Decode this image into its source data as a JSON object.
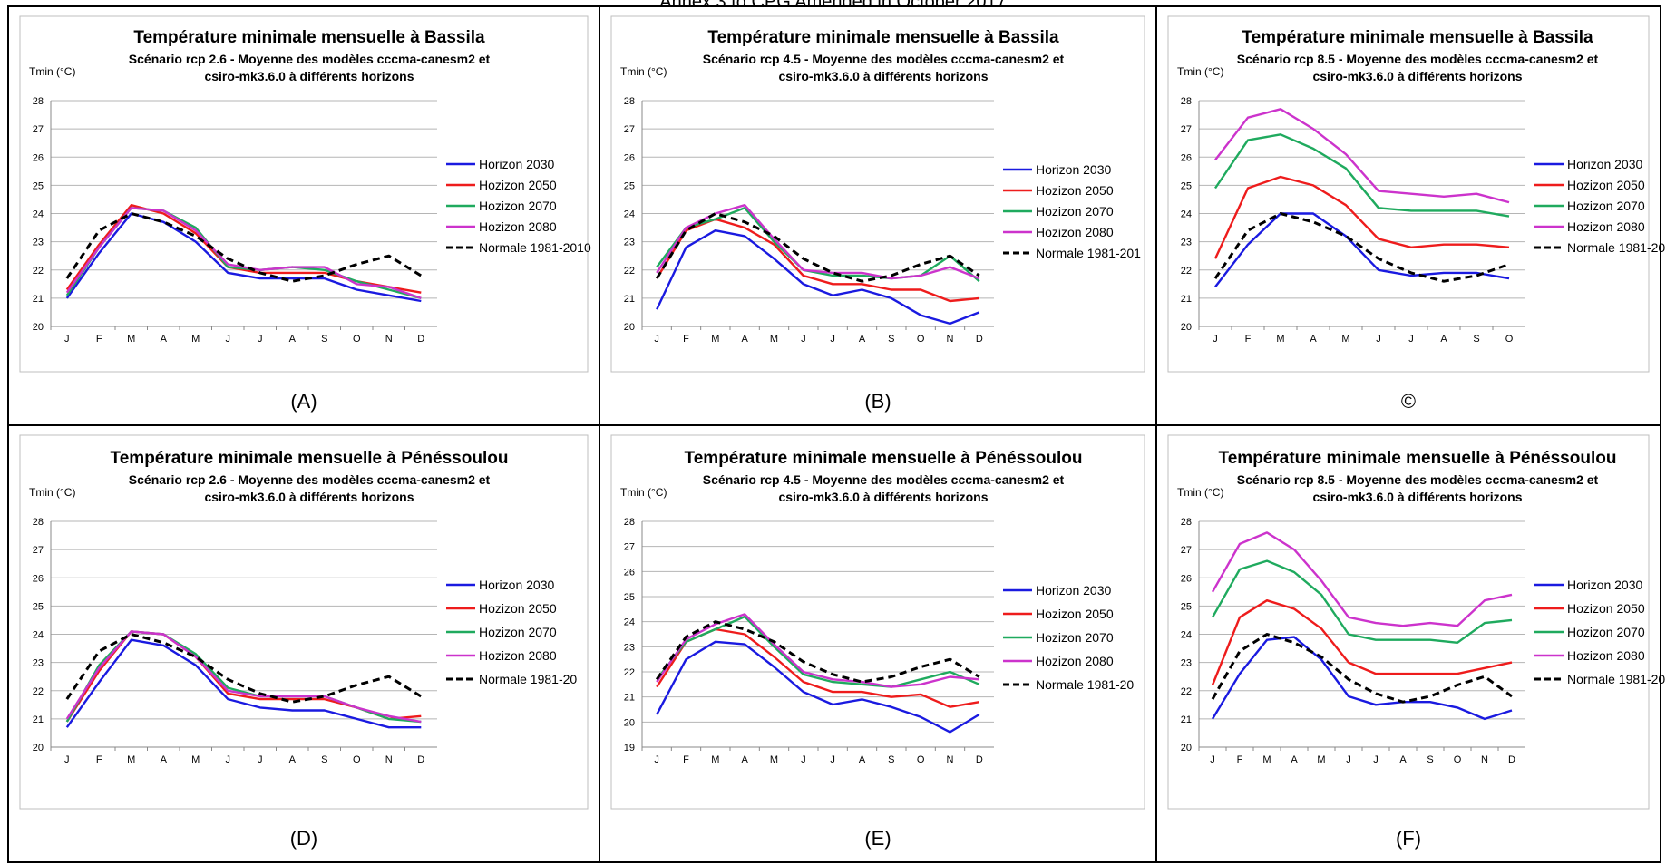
{
  "page": {
    "header_text": "Annex 3 to CPG Amended in October 2017"
  },
  "colors": {
    "Horizon 2030": "#1a1ae0",
    "Hozizon 2050": "#ee1c1c",
    "Hozizon 2070": "#1faa5e",
    "Hozizon 2080": "#cc33cc",
    "Normale": "#000000"
  },
  "chart_data": [
    {
      "type": "line",
      "panel_label": "(A)",
      "title": "Température minimale mensuelle à Bassila",
      "subtitle_line1": "Scénario rcp 2.6 - Moyenne des modèles cccma-canesm2 et",
      "subtitle_line2": "csiro-mk3.6.0 à différents  horizons",
      "ylabel": "Tmin (°C)",
      "ylim": [
        20,
        28
      ],
      "yticks": [
        20,
        21,
        22,
        23,
        24,
        25,
        26,
        27,
        28
      ],
      "categories": [
        "J",
        "F",
        "M",
        "A",
        "M",
        "J",
        "J",
        "A",
        "S",
        "O",
        "N",
        "D"
      ],
      "grid": true,
      "legend_position": "right",
      "series": [
        {
          "name": "Horizon 2030",
          "values": [
            21.0,
            22.6,
            24.0,
            23.7,
            23.0,
            21.9,
            21.7,
            21.7,
            21.7,
            21.3,
            21.1,
            20.9
          ]
        },
        {
          "name": "Hozizon 2050",
          "values": [
            21.3,
            22.9,
            24.3,
            24.0,
            23.3,
            22.1,
            21.9,
            21.9,
            21.9,
            21.6,
            21.4,
            21.2
          ]
        },
        {
          "name": "Hozizon 2070",
          "values": [
            21.1,
            22.8,
            24.2,
            24.1,
            23.5,
            22.1,
            22.0,
            22.1,
            22.0,
            21.6,
            21.3,
            21.0
          ]
        },
        {
          "name": "Hozizon 2080",
          "values": [
            21.2,
            22.8,
            24.2,
            24.1,
            23.4,
            22.2,
            22.0,
            22.1,
            22.1,
            21.5,
            21.4,
            21.0
          ]
        },
        {
          "name": "Normale 1981-2010",
          "values": [
            21.7,
            23.4,
            24.0,
            23.7,
            23.2,
            22.4,
            21.9,
            21.6,
            21.8,
            22.2,
            22.5,
            21.8
          ]
        }
      ]
    },
    {
      "type": "line",
      "panel_label": "(B)",
      "title": "Température minimale mensuelle à Bassila",
      "subtitle_line1": "Scénario rcp 4.5 - Moyenne des modèles cccma-canesm2 et",
      "subtitle_line2": "csiro-mk3.6.0 à différents  horizons",
      "ylabel": "Tmin (°C)",
      "ylim": [
        20,
        28
      ],
      "yticks": [
        20,
        21,
        22,
        23,
        24,
        25,
        26,
        27,
        28
      ],
      "categories": [
        "J",
        "F",
        "M",
        "A",
        "M",
        "J",
        "J",
        "A",
        "S",
        "O",
        "N",
        "D"
      ],
      "grid": true,
      "legend_position": "right",
      "series": [
        {
          "name": "Horizon 2030",
          "values": [
            20.6,
            22.8,
            23.4,
            23.2,
            22.4,
            21.5,
            21.1,
            21.3,
            21.0,
            20.4,
            20.1,
            20.5
          ]
        },
        {
          "name": "Hozizon 2050",
          "values": [
            21.7,
            23.4,
            23.8,
            23.5,
            22.9,
            21.8,
            21.5,
            21.5,
            21.3,
            21.3,
            20.9,
            21.0
          ]
        },
        {
          "name": "Hozizon 2070",
          "values": [
            22.1,
            23.5,
            23.8,
            24.2,
            23.0,
            22.0,
            21.8,
            21.8,
            21.7,
            21.8,
            22.5,
            21.6
          ]
        },
        {
          "name": "Hozizon 2080",
          "values": [
            21.9,
            23.5,
            24.0,
            24.3,
            23.1,
            22.0,
            21.9,
            21.9,
            21.7,
            21.8,
            22.1,
            21.7
          ]
        },
        {
          "name": "Normale 1981-201",
          "values": [
            21.7,
            23.4,
            24.0,
            23.7,
            23.2,
            22.4,
            21.9,
            21.6,
            21.8,
            22.2,
            22.5,
            21.8
          ]
        }
      ]
    },
    {
      "type": "line",
      "panel_label": "©",
      "title": "Température minimale mensuelle à Bassila",
      "subtitle_line1": "Scénario rcp 8.5 - Moyenne des modèles cccma-canesm2 et",
      "subtitle_line2": "csiro-mk3.6.0 à différents  horizons",
      "ylabel": "Tmin (°C)",
      "ylim": [
        20,
        28
      ],
      "yticks": [
        20,
        21,
        22,
        23,
        24,
        25,
        26,
        27,
        28
      ],
      "categories": [
        "J",
        "F",
        "M",
        "A",
        "M",
        "J",
        "J",
        "A",
        "S",
        "O"
      ],
      "grid": true,
      "legend_position": "right",
      "series": [
        {
          "name": "Horizon 2030",
          "values": [
            21.4,
            22.9,
            24.0,
            24.0,
            23.2,
            22.0,
            21.8,
            21.9,
            21.9,
            21.7
          ]
        },
        {
          "name": "Hozizon 2050",
          "values": [
            22.4,
            24.9,
            25.3,
            25.0,
            24.3,
            23.1,
            22.8,
            22.9,
            22.9,
            22.8
          ]
        },
        {
          "name": "Hozizon 2070",
          "values": [
            24.9,
            26.6,
            26.8,
            26.3,
            25.6,
            24.2,
            24.1,
            24.1,
            24.1,
            23.9
          ]
        },
        {
          "name": "Hozizon 2080",
          "values": [
            25.9,
            27.4,
            27.7,
            27.0,
            26.1,
            24.8,
            24.7,
            24.6,
            24.7,
            24.4
          ]
        },
        {
          "name": "Normale 1981-20",
          "values": [
            21.7,
            23.4,
            24.0,
            23.7,
            23.2,
            22.4,
            21.9,
            21.6,
            21.8,
            22.2
          ]
        }
      ]
    },
    {
      "type": "line",
      "panel_label": "(D)",
      "title": "Température minimale mensuelle à Pénéssoulou",
      "subtitle_line1": "Scénario rcp 2.6 - Moyenne des modèles cccma-canesm2 et",
      "subtitle_line2": "csiro-mk3.6.0 à différents  horizons",
      "ylabel": "Tmin (°C)",
      "ylim": [
        20,
        28
      ],
      "yticks": [
        20,
        21,
        22,
        23,
        24,
        25,
        26,
        27,
        28
      ],
      "categories": [
        "J",
        "F",
        "M",
        "A",
        "M",
        "J",
        "J",
        "A",
        "S",
        "O",
        "N",
        "D"
      ],
      "grid": true,
      "legend_position": "right",
      "series": [
        {
          "name": "Horizon 2030",
          "values": [
            20.7,
            22.3,
            23.8,
            23.6,
            22.9,
            21.7,
            21.4,
            21.3,
            21.3,
            21.0,
            20.7,
            20.7
          ]
        },
        {
          "name": "Hozizon 2050",
          "values": [
            20.9,
            22.7,
            24.1,
            24.0,
            23.2,
            21.9,
            21.7,
            21.7,
            21.7,
            21.4,
            21.0,
            21.1
          ]
        },
        {
          "name": "Hozizon 2070",
          "values": [
            20.9,
            22.9,
            24.1,
            24.0,
            23.3,
            22.1,
            21.8,
            21.8,
            21.8,
            21.4,
            21.0,
            20.9
          ]
        },
        {
          "name": "Hozizon 2080",
          "values": [
            21.0,
            22.8,
            24.1,
            24.0,
            23.2,
            22.0,
            21.8,
            21.8,
            21.8,
            21.4,
            21.1,
            20.9
          ]
        },
        {
          "name": "Normale 1981-20",
          "values": [
            21.7,
            23.4,
            24.0,
            23.7,
            23.2,
            22.4,
            21.9,
            21.6,
            21.8,
            22.2,
            22.5,
            21.8
          ]
        }
      ]
    },
    {
      "type": "line",
      "panel_label": "(E)",
      "title": "Température minimale mensuelle à Pénéssoulou",
      "subtitle_line1": "Scénario rcp 4.5 - Moyenne des modèles cccma-canesm2 et",
      "subtitle_line2": "csiro-mk3.6.0 à différents  horizons",
      "ylabel": "Tmin (°C)",
      "ylim": [
        19,
        28
      ],
      "yticks": [
        19,
        20,
        21,
        22,
        23,
        24,
        25,
        26,
        27,
        28
      ],
      "categories": [
        "J",
        "F",
        "M",
        "A",
        "M",
        "J",
        "J",
        "A",
        "S",
        "O",
        "N",
        "D"
      ],
      "grid": true,
      "legend_position": "right",
      "series": [
        {
          "name": "Horizon 2030",
          "values": [
            20.3,
            22.5,
            23.2,
            23.1,
            22.2,
            21.2,
            20.7,
            20.9,
            20.6,
            20.2,
            19.6,
            20.3
          ]
        },
        {
          "name": "Hozizon 2050",
          "values": [
            21.4,
            23.2,
            23.7,
            23.5,
            22.6,
            21.6,
            21.2,
            21.2,
            21.0,
            21.1,
            20.6,
            20.8
          ]
        },
        {
          "name": "Hozizon 2070",
          "values": [
            21.7,
            23.2,
            23.7,
            24.2,
            23.0,
            21.9,
            21.6,
            21.5,
            21.4,
            21.7,
            22.0,
            21.5
          ]
        },
        {
          "name": "Hozizon 2080",
          "values": [
            21.6,
            23.3,
            23.9,
            24.3,
            23.1,
            22.0,
            21.7,
            21.6,
            21.4,
            21.5,
            21.8,
            21.7
          ]
        },
        {
          "name": "Normale 1981-20",
          "values": [
            21.7,
            23.4,
            24.0,
            23.7,
            23.2,
            22.4,
            21.9,
            21.6,
            21.8,
            22.2,
            22.5,
            21.8
          ]
        }
      ]
    },
    {
      "type": "line",
      "panel_label": "(F)",
      "title": "Température minimale mensuelle à Pénéssoulou",
      "subtitle_line1": "Scénario rcp 8.5 - Moyenne des modèles cccma-canesm2 et",
      "subtitle_line2": "csiro-mk3.6.0 à différents  horizons",
      "ylabel": "Tmin (°C)",
      "ylim": [
        20,
        28
      ],
      "yticks": [
        20,
        21,
        22,
        23,
        24,
        25,
        26,
        27,
        28
      ],
      "categories": [
        "J",
        "F",
        "M",
        "A",
        "M",
        "J",
        "J",
        "A",
        "S",
        "O",
        "N",
        "D"
      ],
      "grid": true,
      "legend_position": "right",
      "series": [
        {
          "name": "Horizon 2030",
          "values": [
            21.0,
            22.6,
            23.8,
            23.9,
            23.1,
            21.8,
            21.5,
            21.6,
            21.6,
            21.4,
            21.0,
            21.3
          ]
        },
        {
          "name": "Hozizon 2050",
          "values": [
            22.2,
            24.6,
            25.2,
            24.9,
            24.2,
            23.0,
            22.6,
            22.6,
            22.6,
            22.6,
            22.8,
            23.0
          ]
        },
        {
          "name": "Hozizon 2070",
          "values": [
            24.6,
            26.3,
            26.6,
            26.2,
            25.4,
            24.0,
            23.8,
            23.8,
            23.8,
            23.7,
            24.4,
            24.5
          ]
        },
        {
          "name": "Hozizon 2080",
          "values": [
            25.5,
            27.2,
            27.6,
            27.0,
            25.9,
            24.6,
            24.4,
            24.3,
            24.4,
            24.3,
            25.2,
            25.4
          ]
        },
        {
          "name": "Normale 1981-20",
          "values": [
            21.7,
            23.4,
            24.0,
            23.7,
            23.2,
            22.4,
            21.9,
            21.6,
            21.8,
            22.2,
            22.5,
            21.8
          ]
        }
      ]
    }
  ]
}
